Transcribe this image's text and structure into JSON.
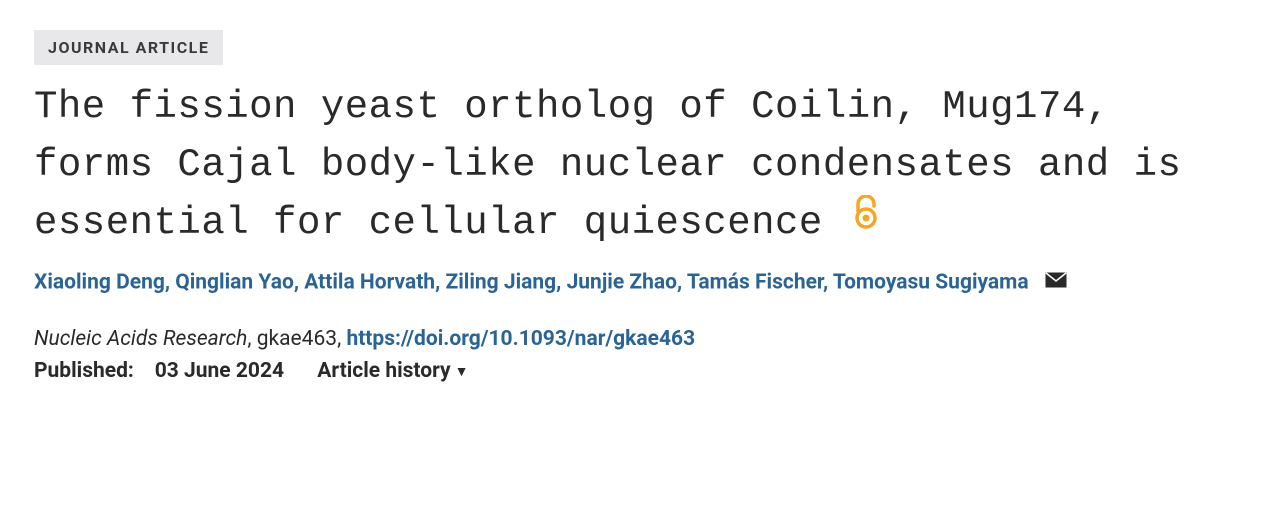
{
  "badge": {
    "label": "JOURNAL ARTICLE"
  },
  "title": "The fission yeast ortholog of Coilin, Mug174, forms Cajal body-like nuclear condensates and is essential for cellular quiescence",
  "open_access_icon": {
    "color": "#f5a623"
  },
  "authors": [
    "Xiaoling Deng",
    "Qinglian Yao",
    "Attila Horvath",
    "Ziling Jiang",
    "Junjie Zhao",
    "Tamás Fischer",
    "Tomoyasu Sugiyama"
  ],
  "corresponding_author_index": 6,
  "citation": {
    "journal": "Nucleic Acids Research",
    "article_id": "gkae463",
    "doi_url": "https://doi.org/10.1093/nar/gkae463"
  },
  "published": {
    "label": "Published:",
    "date": "03 June 2024"
  },
  "history": {
    "label": "Article history"
  },
  "colors": {
    "link": "#2a6496",
    "badge_bg": "#e8e8ea",
    "text": "#2a2a2a",
    "oa_orange": "#f5a623"
  }
}
